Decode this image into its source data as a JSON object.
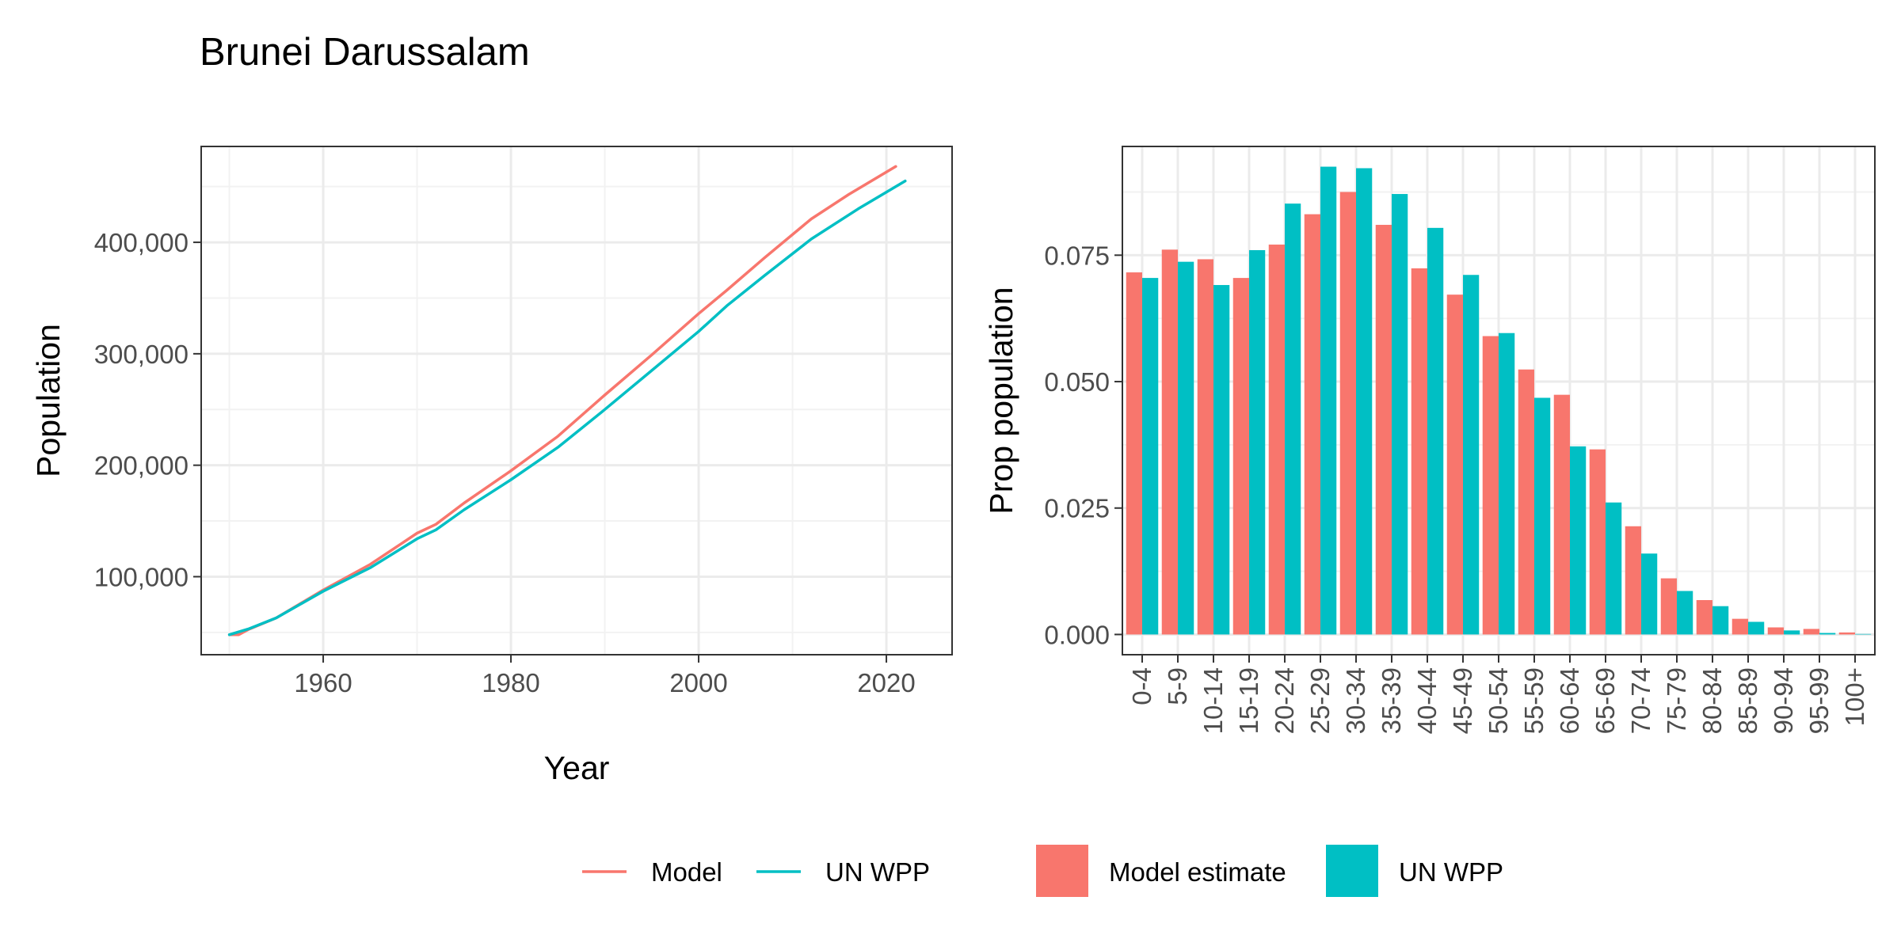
{
  "title": "Brunei Darussalam",
  "chart_data": [
    {
      "type": "line",
      "xlabel": "Year",
      "ylabel": "Population",
      "xlim": [
        1947,
        2027
      ],
      "ylim": [
        30000,
        486000
      ],
      "x_ticks": [
        1960,
        1980,
        2000,
        2020
      ],
      "x_tick_labels": [
        "1960",
        "1980",
        "2000",
        "2020"
      ],
      "y_ticks": [
        100000,
        200000,
        300000,
        400000
      ],
      "y_tick_labels": [
        "100,000",
        "200,000",
        "300,000",
        "400,000"
      ],
      "grid": true,
      "series": [
        {
          "name": "Model",
          "color": "#F8766D",
          "x": [
            1950,
            1951,
            1952,
            1955,
            1960,
            1965,
            1970,
            1972,
            1975,
            1980,
            1985,
            1990,
            1995,
            2000,
            2003,
            2007,
            2012,
            2016,
            2021
          ],
          "y": [
            48000,
            48000,
            52500,
            63000,
            88000,
            111000,
            139000,
            147000,
            166000,
            195000,
            226000,
            263000,
            299000,
            336000,
            357000,
            386000,
            421000,
            443000,
            468000
          ]
        },
        {
          "name": "UN WPP",
          "color": "#00BFC4",
          "x": [
            1950,
            1952,
            1955,
            1960,
            1965,
            1970,
            1972,
            1975,
            1980,
            1985,
            1990,
            1995,
            2000,
            2003,
            2007,
            2012,
            2017,
            2022
          ],
          "y": [
            48000,
            53000,
            63000,
            87000,
            108000,
            134000,
            142000,
            160000,
            187000,
            216000,
            250000,
            285000,
            320000,
            343000,
            370000,
            403000,
            430000,
            455000
          ]
        }
      ],
      "legend": {
        "position": "bottom",
        "items": [
          {
            "label": "Model",
            "color": "#F8766D"
          },
          {
            "label": "UN WPP",
            "color": "#00BFC4"
          }
        ]
      }
    },
    {
      "type": "bar",
      "xlabel": "",
      "ylabel": "Prop population",
      "ylim": [
        -0.004,
        0.0965
      ],
      "y_ticks": [
        0,
        0.025,
        0.05,
        0.075
      ],
      "y_tick_labels": [
        "0.000",
        "0.025",
        "0.050",
        "0.075"
      ],
      "grid": true,
      "categories": [
        "0-4",
        "5-9",
        "10-14",
        "15-19",
        "20-24",
        "25-29",
        "30-34",
        "35-39",
        "40-44",
        "45-49",
        "50-54",
        "55-59",
        "60-64",
        "65-69",
        "70-74",
        "75-79",
        "80-84",
        "85-89",
        "90-94",
        "95-99",
        "100+"
      ],
      "series": [
        {
          "name": "Model estimate",
          "color": "#F8766D",
          "values": [
            0.0716,
            0.0761,
            0.0742,
            0.0705,
            0.0771,
            0.0831,
            0.0875,
            0.081,
            0.0724,
            0.0672,
            0.059,
            0.0524,
            0.0474,
            0.0366,
            0.0214,
            0.0111,
            0.0068,
            0.0031,
            0.0014,
            0.0011,
            0.0004
          ]
        },
        {
          "name": "UN WPP",
          "color": "#00BFC4",
          "values": [
            0.0705,
            0.0737,
            0.0691,
            0.076,
            0.0852,
            0.0925,
            0.0922,
            0.0871,
            0.0804,
            0.0711,
            0.0596,
            0.0468,
            0.0372,
            0.0261,
            0.016,
            0.0086,
            0.0056,
            0.0025,
            0.0008,
            0.0003,
            0.0001
          ]
        }
      ],
      "legend": {
        "position": "bottom",
        "items": [
          {
            "label": "Model estimate",
            "color": "#F8766D"
          },
          {
            "label": "UN WPP",
            "color": "#00BFC4"
          }
        ]
      }
    }
  ]
}
